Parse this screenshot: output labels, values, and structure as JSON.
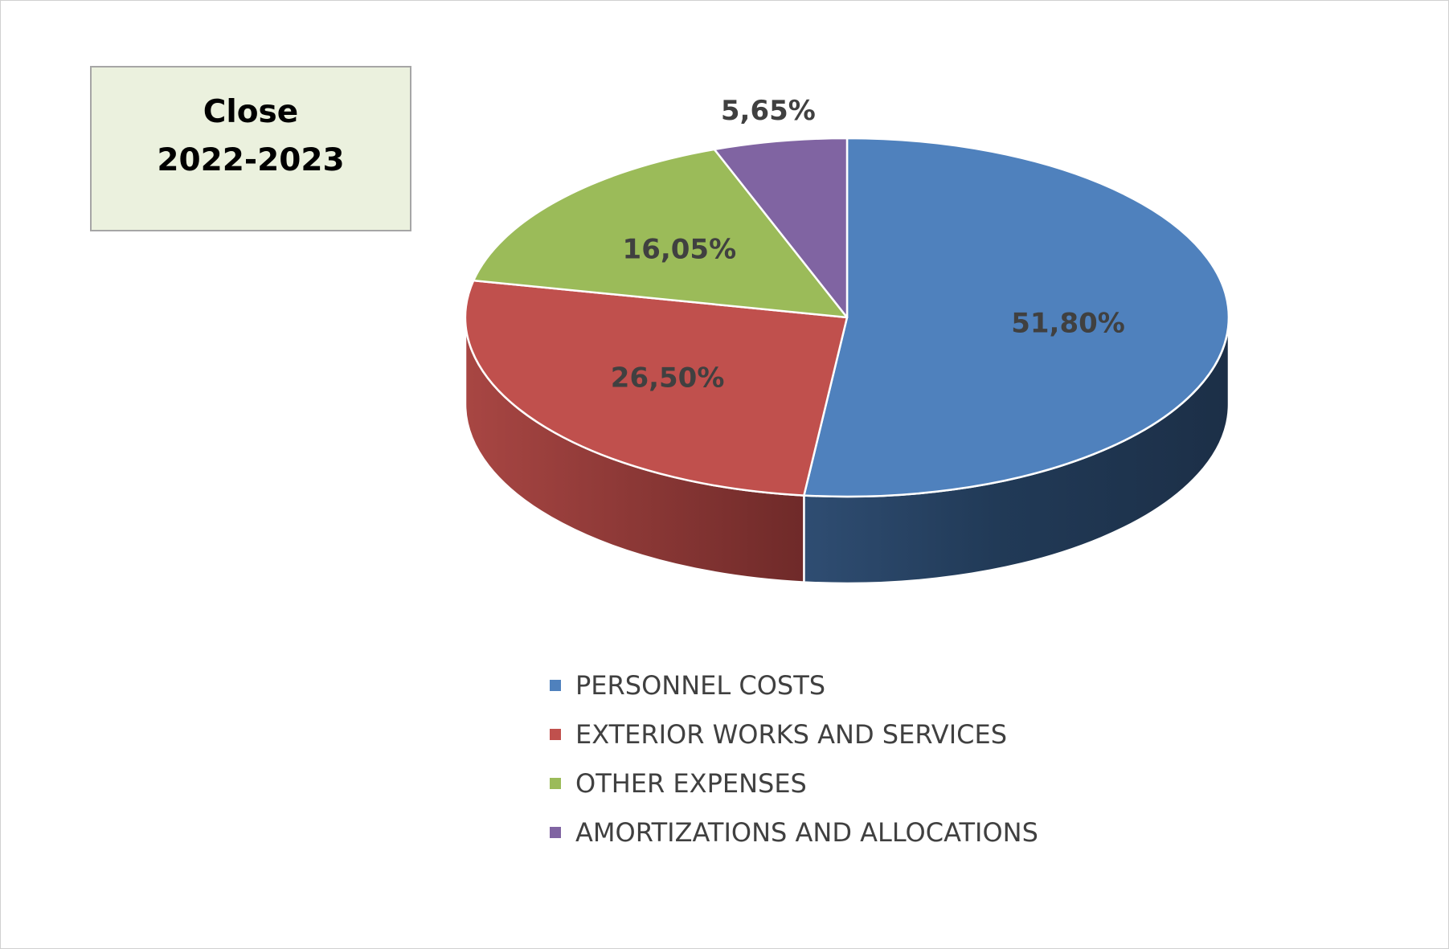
{
  "chart_data": {
    "type": "pie",
    "title_lines": [
      "Close",
      "2022-2023"
    ],
    "categories": [
      "PERSONNEL COSTS",
      "EXTERIOR WORKS AND SERVICES",
      "OTHER EXPENSES",
      "AMORTIZATIONS AND ALLOCATIONS"
    ],
    "values": [
      51.8,
      26.5,
      16.05,
      5.65
    ],
    "data_labels": [
      "51,80%",
      "26,50%",
      "16,05%",
      "5,65%"
    ],
    "colors": [
      "#4f81bd",
      "#c0504d",
      "#9bbb59",
      "#8064a2"
    ],
    "legend_position": "bottom",
    "style": "3d-pie"
  }
}
